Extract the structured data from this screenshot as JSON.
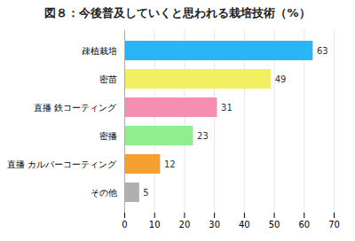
{
  "chart_data": {
    "type": "bar",
    "orientation": "horizontal",
    "title": "図８：今後普及していくと思われる栽培技術（%）",
    "categories": [
      "疎植栽培",
      "密苗",
      "直播 鉄コーティング",
      "密播",
      "直播 カルバーコーティング",
      "その他"
    ],
    "values": [
      63,
      49,
      31,
      23,
      12,
      5
    ],
    "colors": [
      "#29B6F6",
      "#F0F060",
      "#F48FB1",
      "#90EE90",
      "#F4A030",
      "#B0B0B0"
    ],
    "xlim": [
      0,
      70
    ],
    "xticks": [
      0,
      10,
      20,
      30,
      40,
      50,
      60,
      70
    ],
    "grid": true,
    "data_labels": true
  }
}
